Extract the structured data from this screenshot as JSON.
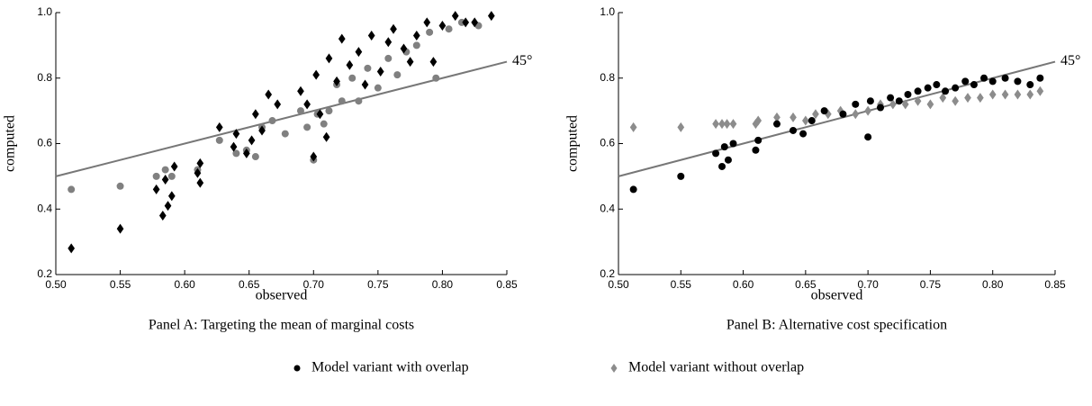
{
  "chart_data": [
    {
      "type": "scatter",
      "caption": "Panel A: Targeting the mean of marginal costs",
      "xlabel": "observed",
      "ylabel": "computed",
      "xlim": [
        0.5,
        0.85
      ],
      "ylim": [
        0.2,
        1.0
      ],
      "xticks": [
        {
          "value": 0.5,
          "label": "0.50"
        },
        0.55,
        {
          "value": 0.6,
          "label": "0.60"
        },
        0.65,
        {
          "value": 0.7,
          "label": "0.70"
        },
        0.75,
        {
          "value": 0.8,
          "label": "0.80"
        },
        0.85
      ],
      "yticks": [
        0.2,
        0.4,
        0.6,
        0.8,
        {
          "value": 1.0,
          "label": "1.0"
        }
      ],
      "reference_line": {
        "x": [
          0.5,
          0.85
        ],
        "y": [
          0.5,
          0.85
        ],
        "label": "45°",
        "color": "#777777"
      },
      "series": [
        {
          "marker": "circle",
          "color": "#808080",
          "x": [
            0.512,
            0.55,
            0.578,
            0.585,
            0.59,
            0.61,
            0.627,
            0.64,
            0.648,
            0.655,
            0.66,
            0.668,
            0.678,
            0.69,
            0.695,
            0.7,
            0.703,
            0.708,
            0.712,
            0.718,
            0.722,
            0.73,
            0.735,
            0.742,
            0.75,
            0.758,
            0.765,
            0.772,
            0.78,
            0.79,
            0.795,
            0.805,
            0.815,
            0.828
          ],
          "values": [
            0.46,
            0.47,
            0.5,
            0.52,
            0.5,
            0.52,
            0.61,
            0.57,
            0.58,
            0.56,
            0.65,
            0.67,
            0.63,
            0.7,
            0.65,
            0.55,
            0.69,
            0.66,
            0.7,
            0.78,
            0.73,
            0.8,
            0.73,
            0.83,
            0.77,
            0.86,
            0.81,
            0.88,
            0.9,
            0.94,
            0.8,
            0.95,
            0.97,
            0.96
          ]
        },
        {
          "marker": "diamond",
          "color": "#000000",
          "x": [
            0.512,
            0.55,
            0.578,
            0.583,
            0.585,
            0.587,
            0.59,
            0.592,
            0.61,
            0.612,
            0.612,
            0.627,
            0.638,
            0.64,
            0.648,
            0.652,
            0.655,
            0.66,
            0.665,
            0.672,
            0.69,
            0.695,
            0.7,
            0.702,
            0.705,
            0.71,
            0.712,
            0.718,
            0.722,
            0.728,
            0.735,
            0.74,
            0.745,
            0.752,
            0.758,
            0.762,
            0.77,
            0.775,
            0.78,
            0.788,
            0.793,
            0.8,
            0.81,
            0.818,
            0.825,
            0.838
          ],
          "values": [
            0.28,
            0.34,
            0.46,
            0.38,
            0.49,
            0.41,
            0.44,
            0.53,
            0.51,
            0.54,
            0.48,
            0.65,
            0.59,
            0.63,
            0.57,
            0.61,
            0.69,
            0.64,
            0.75,
            0.72,
            0.76,
            0.72,
            0.56,
            0.81,
            0.69,
            0.62,
            0.86,
            0.79,
            0.92,
            0.84,
            0.88,
            0.78,
            0.93,
            0.82,
            0.91,
            0.95,
            0.89,
            0.85,
            0.93,
            0.97,
            0.85,
            0.96,
            0.99,
            0.97,
            0.97,
            0.99
          ]
        }
      ]
    },
    {
      "type": "scatter",
      "caption": "Panel B: Alternative cost specification",
      "xlabel": "observed",
      "ylabel": "computed",
      "xlim": [
        0.5,
        0.85
      ],
      "ylim": [
        0.2,
        1.0
      ],
      "xticks": [
        {
          "value": 0.5,
          "label": "0.50"
        },
        0.55,
        {
          "value": 0.6,
          "label": "0.60"
        },
        0.65,
        {
          "value": 0.7,
          "label": "0.70"
        },
        0.75,
        {
          "value": 0.8,
          "label": "0.80"
        },
        0.85
      ],
      "yticks": [
        0.2,
        0.4,
        0.6,
        0.8,
        {
          "value": 1.0,
          "label": "1.0"
        }
      ],
      "reference_line": {
        "x": [
          0.5,
          0.85
        ],
        "y": [
          0.5,
          0.85
        ],
        "label": "45°",
        "color": "#777777"
      },
      "series": [
        {
          "marker": "diamond",
          "color": "#8c8c8c",
          "x": [
            0.512,
            0.55,
            0.578,
            0.583,
            0.587,
            0.592,
            0.61,
            0.612,
            0.627,
            0.64,
            0.65,
            0.658,
            0.668,
            0.678,
            0.69,
            0.7,
            0.71,
            0.72,
            0.73,
            0.74,
            0.75,
            0.76,
            0.77,
            0.78,
            0.79,
            0.8,
            0.81,
            0.82,
            0.83,
            0.838
          ],
          "values": [
            0.65,
            0.65,
            0.66,
            0.66,
            0.66,
            0.66,
            0.66,
            0.67,
            0.68,
            0.68,
            0.67,
            0.69,
            0.69,
            0.7,
            0.69,
            0.7,
            0.72,
            0.72,
            0.72,
            0.73,
            0.72,
            0.74,
            0.73,
            0.74,
            0.74,
            0.75,
            0.75,
            0.75,
            0.75,
            0.76
          ]
        },
        {
          "marker": "circle",
          "color": "#000000",
          "x": [
            0.512,
            0.55,
            0.578,
            0.583,
            0.585,
            0.588,
            0.592,
            0.61,
            0.612,
            0.627,
            0.64,
            0.648,
            0.655,
            0.665,
            0.68,
            0.69,
            0.7,
            0.702,
            0.71,
            0.718,
            0.725,
            0.732,
            0.74,
            0.748,
            0.755,
            0.762,
            0.77,
            0.778,
            0.785,
            0.793,
            0.8,
            0.81,
            0.82,
            0.83,
            0.838
          ],
          "values": [
            0.46,
            0.5,
            0.57,
            0.53,
            0.59,
            0.55,
            0.6,
            0.58,
            0.61,
            0.66,
            0.64,
            0.63,
            0.67,
            0.7,
            0.69,
            0.72,
            0.62,
            0.73,
            0.71,
            0.74,
            0.73,
            0.75,
            0.76,
            0.77,
            0.78,
            0.76,
            0.77,
            0.79,
            0.78,
            0.8,
            0.79,
            0.8,
            0.79,
            0.78,
            0.8
          ]
        }
      ]
    }
  ],
  "legend": {
    "items": [
      {
        "marker": "circle",
        "color": "#000000",
        "label": "Model variant with overlap"
      },
      {
        "marker": "diamond",
        "color": "#8c8c8c",
        "label": "Model variant without overlap"
      }
    ]
  }
}
